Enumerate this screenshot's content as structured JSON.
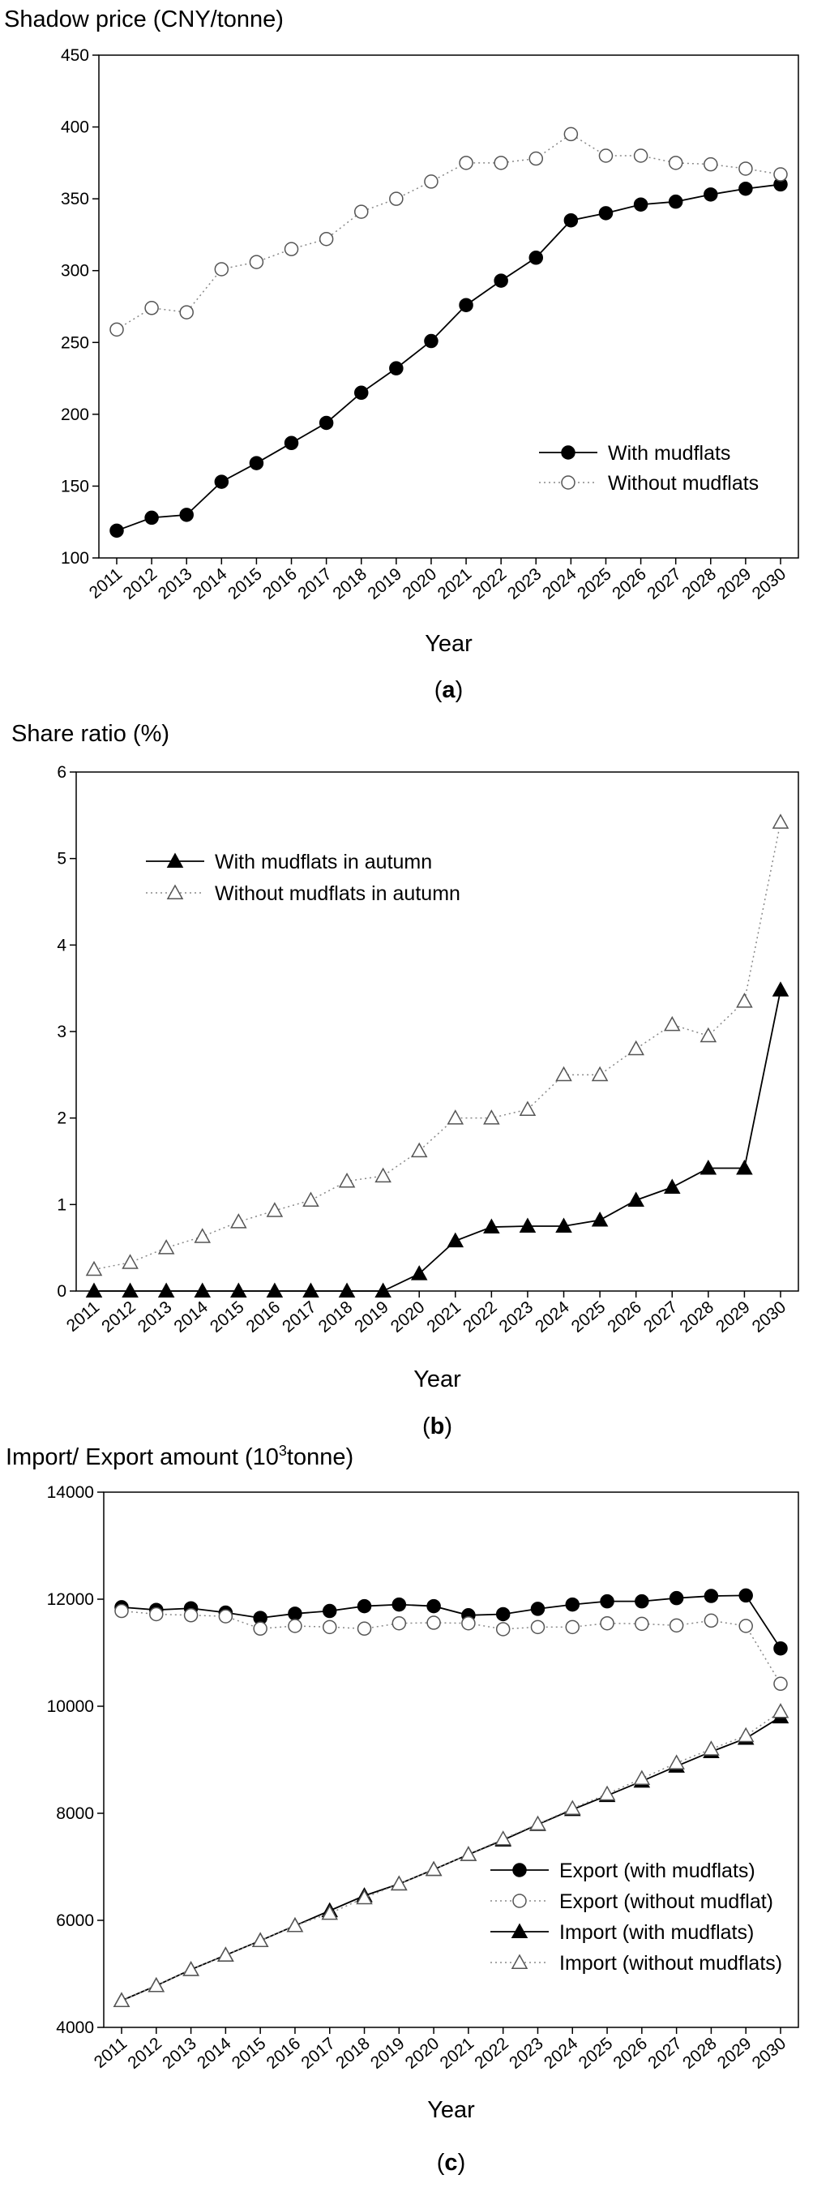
{
  "chart_data": [
    {
      "type": "line",
      "title": "",
      "ylabel": "Shadow price (CNY/tonne)",
      "xlabel": "Year",
      "panel_label": {
        "open": "(",
        "letter": "a",
        "close": ")"
      },
      "categories": [
        "2011",
        "2012",
        "2013",
        "2014",
        "2015",
        "2016",
        "2017",
        "2018",
        "2019",
        "2020",
        "2021",
        "2022",
        "2023",
        "2024",
        "2025",
        "2026",
        "2027",
        "2028",
        "2029",
        "2030"
      ],
      "ylim": [
        100,
        450
      ],
      "yticks": [
        100,
        150,
        200,
        250,
        300,
        350,
        400,
        450
      ],
      "grid": false,
      "legend_position": "lower-right",
      "series": [
        {
          "name": "With mudflats",
          "marker": "circle-filled",
          "line": "solid",
          "values": [
            119,
            128,
            130,
            153,
            166,
            180,
            194,
            215,
            232,
            251,
            276,
            293,
            309,
            335,
            340,
            346,
            348,
            353,
            357,
            360
          ]
        },
        {
          "name": "Without mudflats",
          "marker": "circle-open",
          "line": "dotted",
          "values": [
            259,
            274,
            271,
            301,
            306,
            315,
            322,
            341,
            350,
            362,
            375,
            375,
            378,
            395,
            380,
            380,
            375,
            374,
            371,
            367
          ]
        }
      ]
    },
    {
      "type": "line",
      "title": "",
      "ylabel": "Share ratio (%)",
      "xlabel": "Year",
      "panel_label": {
        "open": "(",
        "letter": "b",
        "close": ")"
      },
      "categories": [
        "2011",
        "2012",
        "2013",
        "2014",
        "2015",
        "2016",
        "2017",
        "2018",
        "2019",
        "2020",
        "2021",
        "2022",
        "2023",
        "2024",
        "2025",
        "2026",
        "2027",
        "2028",
        "2029",
        "2030"
      ],
      "ylim": [
        0,
        6
      ],
      "yticks": [
        0,
        1,
        2,
        3,
        4,
        5,
        6
      ],
      "grid": false,
      "legend_position": "upper-left",
      "series": [
        {
          "name": "With mudflats in autumn",
          "marker": "triangle-filled",
          "line": "solid",
          "values": [
            0,
            0,
            0,
            0,
            0,
            0,
            0,
            0,
            0,
            0.2,
            0.58,
            0.74,
            0.75,
            0.75,
            0.82,
            1.05,
            1.2,
            1.42,
            1.42,
            3.48
          ]
        },
        {
          "name": "Without mudflats in autumn",
          "marker": "triangle-open",
          "line": "dotted",
          "values": [
            0.25,
            0.33,
            0.5,
            0.63,
            0.8,
            0.93,
            1.05,
            1.27,
            1.33,
            1.62,
            2.0,
            2.0,
            2.1,
            2.5,
            2.5,
            2.8,
            3.08,
            2.95,
            3.35,
            5.42
          ]
        }
      ]
    },
    {
      "type": "line",
      "title": "",
      "ylabel": "Import/ Export amount (10",
      "ylabel_sup": "3",
      "ylabel_end": "tonne)",
      "xlabel": "Year",
      "panel_label": {
        "open": "(",
        "letter": "c",
        "close": ")"
      },
      "categories": [
        "2011",
        "2012",
        "2013",
        "2014",
        "2015",
        "2016",
        "2017",
        "2018",
        "2019",
        "2020",
        "2021",
        "2022",
        "2023",
        "2024",
        "2025",
        "2026",
        "2027",
        "2028",
        "2029",
        "2030"
      ],
      "ylim": [
        4000,
        14000
      ],
      "yticks": [
        4000,
        6000,
        8000,
        10000,
        12000,
        14000
      ],
      "grid": false,
      "legend_position": "lower-right",
      "series": [
        {
          "name": "Export (with mudflats)",
          "marker": "circle-filled",
          "line": "solid",
          "values": [
            11850,
            11800,
            11830,
            11750,
            11650,
            11730,
            11780,
            11870,
            11900,
            11870,
            11700,
            11720,
            11820,
            11900,
            11960,
            11960,
            12020,
            12060,
            12070,
            11080
          ]
        },
        {
          "name": "Export (without mudflat)",
          "marker": "circle-open",
          "line": "dotted",
          "values": [
            11780,
            11720,
            11700,
            11680,
            11450,
            11500,
            11480,
            11450,
            11550,
            11560,
            11550,
            11440,
            11480,
            11480,
            11550,
            11540,
            11510,
            11600,
            11500,
            10420
          ]
        },
        {
          "name": "Import (with mudflats)",
          "marker": "triangle-filled",
          "line": "solid",
          "values": [
            4500,
            4780,
            5080,
            5350,
            5620,
            5900,
            6180,
            6460,
            6680,
            6950,
            7230,
            7500,
            7790,
            8070,
            8330,
            8600,
            8880,
            9150,
            9400,
            9800
          ]
        },
        {
          "name": "Import (without mudflats)",
          "marker": "triangle-open",
          "line": "dotted",
          "values": [
            4500,
            4780,
            5080,
            5350,
            5620,
            5900,
            6130,
            6420,
            6680,
            6950,
            7230,
            7520,
            7800,
            8090,
            8360,
            8650,
            8940,
            9200,
            9450,
            9900
          ]
        }
      ]
    }
  ]
}
